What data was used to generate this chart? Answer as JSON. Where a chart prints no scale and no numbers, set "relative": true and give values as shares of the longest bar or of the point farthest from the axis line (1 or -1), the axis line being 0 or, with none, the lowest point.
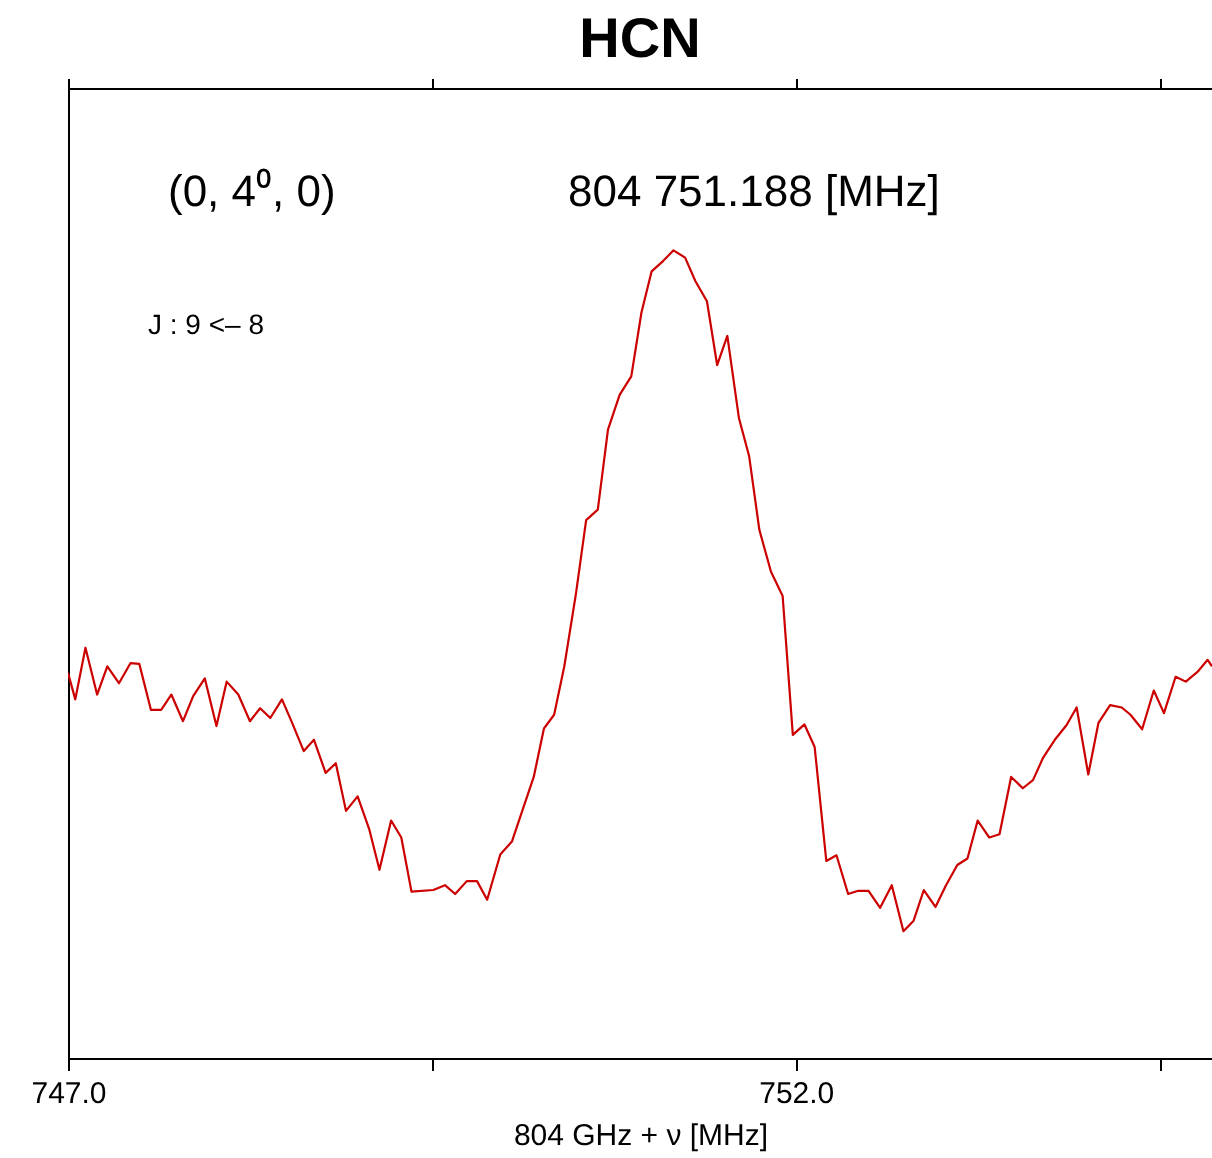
{
  "chart_data": {
    "type": "line",
    "title": "HCN",
    "xlabel": "804 GHz + ν  [MHz]",
    "relative": true,
    "annotations": [
      "(0, 4⁰, 0)",
      "804 751.188 [MHz]",
      "J : 9 <– 8"
    ],
    "xlim": [
      747.0,
      754.86
    ],
    "xticks": [
      {
        "value": 747.0,
        "label": "747.0"
      },
      {
        "value": 749.5,
        "label": null
      },
      {
        "value": 752.0,
        "label": "752.0"
      },
      {
        "value": 754.5,
        "label": null
      }
    ],
    "tick_labels": "x",
    "grid": false,
    "legend": false,
    "marker": "none",
    "line_style": "solid",
    "series": [
      {
        "color": "#cc0000",
        "x": [
          747.0,
          747.05,
          747.12,
          747.2,
          747.27,
          747.35,
          747.43,
          747.49,
          747.57,
          747.64,
          747.71,
          747.79,
          747.86,
          747.94,
          748.02,
          748.09,
          748.17,
          748.25,
          748.32,
          748.39,
          748.47,
          748.54,
          748.62,
          748.69,
          748.77,
          748.84,
          748.91,
          748.99,
          749.07,
          749.14,
          749.22,
          749.29,
          749.36,
          749.51,
          749.59,
          749.66,
          749.74,
          749.81,
          749.88,
          749.97,
          750.05,
          750.11,
          750.2,
          750.27,
          750.34,
          750.41,
          750.49,
          750.56,
          750.64,
          750.71,
          750.79,
          750.87,
          750.94,
          751.01,
          751.09,
          751.16,
          751.24,
          751.31,
          751.39,
          751.46,
          751.53,
          751.61,
          751.68,
          751.75,
          751.83,
          751.91,
          751.98,
          752.06,
          752.13,
          752.21,
          752.28,
          752.36,
          752.43,
          752.5,
          752.58,
          752.66,
          752.74,
          752.81,
          752.88,
          752.96,
          753.03,
          753.11,
          753.18,
          753.25,
          753.33,
          753.4,
          753.48,
          753.56,
          753.63,
          753.7,
          753.78,
          753.86,
          753.93,
          754.01,
          754.08,
          754.16,
          754.24,
          754.3,
          754.38,
          754.46,
          754.53,
          754.61,
          754.68,
          754.76,
          754.83,
          754.86
        ],
        "values": [
          0.477,
          0.444,
          0.508,
          0.45,
          0.485,
          0.464,
          0.489,
          0.488,
          0.431,
          0.431,
          0.45,
          0.417,
          0.448,
          0.47,
          0.411,
          0.466,
          0.45,
          0.417,
          0.433,
          0.421,
          0.444,
          0.415,
          0.38,
          0.394,
          0.353,
          0.365,
          0.306,
          0.324,
          0.283,
          0.233,
          0.294,
          0.273,
          0.206,
          0.208,
          0.214,
          0.203,
          0.219,
          0.219,
          0.196,
          0.252,
          0.268,
          0.3,
          0.348,
          0.408,
          0.425,
          0.485,
          0.575,
          0.666,
          0.679,
          0.778,
          0.821,
          0.844,
          0.923,
          0.974,
          0.987,
          1.0,
          0.991,
          0.962,
          0.937,
          0.858,
          0.894,
          0.792,
          0.745,
          0.654,
          0.602,
          0.572,
          0.4,
          0.413,
          0.385,
          0.244,
          0.251,
          0.203,
          0.207,
          0.207,
          0.186,
          0.214,
          0.157,
          0.17,
          0.208,
          0.187,
          0.213,
          0.239,
          0.247,
          0.294,
          0.273,
          0.277,
          0.348,
          0.334,
          0.344,
          0.372,
          0.394,
          0.412,
          0.434,
          0.351,
          0.415,
          0.437,
          0.434,
          0.425,
          0.407,
          0.455,
          0.427,
          0.472,
          0.466,
          0.478,
          0.493,
          0.485
        ]
      }
    ]
  }
}
